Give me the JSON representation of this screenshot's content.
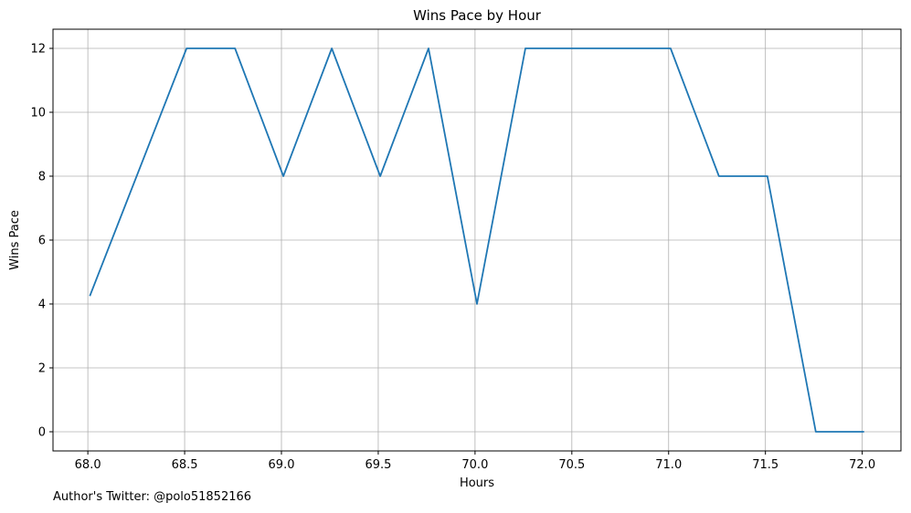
{
  "chart_data": {
    "type": "line",
    "title": "Wins Pace by Hour",
    "xlabel": "Hours",
    "ylabel": "Wins Pace",
    "xlim": [
      67.82,
      72.2
    ],
    "ylim": [
      -0.6,
      12.6
    ],
    "xticks": [
      "68.0",
      "68.5",
      "69.0",
      "69.5",
      "70.0",
      "70.5",
      "71.0",
      "71.5",
      "72.0"
    ],
    "yticks": [
      "0",
      "2",
      "4",
      "6",
      "8",
      "10",
      "12"
    ],
    "grid": true,
    "line_color": "#1f77b4",
    "x": [
      68.01,
      68.51,
      68.76,
      69.01,
      69.26,
      69.51,
      69.76,
      70.01,
      70.26,
      70.51,
      70.76,
      71.01,
      71.26,
      71.51,
      71.76,
      72.01
    ],
    "values": [
      4.25,
      12,
      12,
      8,
      12,
      8,
      12,
      4,
      12,
      12,
      12,
      12,
      8,
      8,
      0,
      0
    ]
  },
  "footer": "Author's Twitter: @polo51852166"
}
